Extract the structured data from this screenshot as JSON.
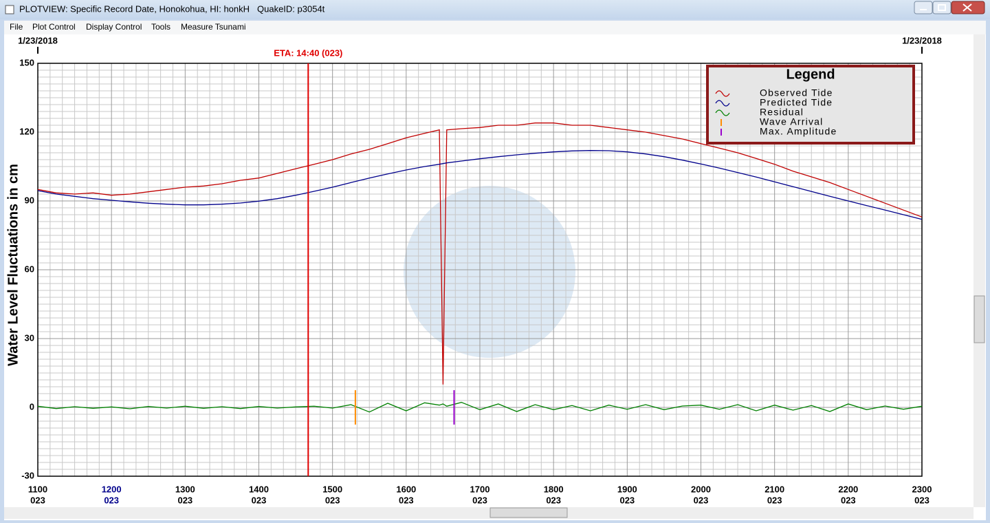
{
  "window": {
    "title": "PLOTVIEW: Specific Record Date, Honokohua, HI: honkH",
    "quake_id": "QuakeID: p3054t"
  },
  "menu": [
    "File",
    "Plot Control",
    "Display Control",
    "Tools",
    "Measure Tsunami"
  ],
  "chart_data": {
    "type": "line",
    "y_label": "Water Level Fluctuations in cm",
    "date_labels": [
      "1/23/2018",
      "1/23/2018"
    ],
    "xlim": [
      11,
      23
    ],
    "xticks": [
      {
        "value": 11,
        "label": "1100",
        "day": "023"
      },
      {
        "value": 12,
        "label": "1200",
        "day": "023",
        "color": "#00008b"
      },
      {
        "value": 13,
        "label": "1300",
        "day": "023"
      },
      {
        "value": 14,
        "label": "1400",
        "day": "023"
      },
      {
        "value": 15,
        "label": "1500",
        "day": "023"
      },
      {
        "value": 16,
        "label": "1600",
        "day": "023"
      },
      {
        "value": 17,
        "label": "1700",
        "day": "023"
      },
      {
        "value": 18,
        "label": "1800",
        "day": "023"
      },
      {
        "value": 19,
        "label": "1900",
        "day": "023"
      },
      {
        "value": 20,
        "label": "2000",
        "day": "023"
      },
      {
        "value": 21,
        "label": "2100",
        "day": "023"
      },
      {
        "value": 22,
        "label": "2200",
        "day": "023"
      },
      {
        "value": 23,
        "label": "2300",
        "day": "023"
      }
    ],
    "ylim": [
      -30,
      150
    ],
    "yticks": [
      -30,
      0,
      30,
      60,
      90,
      120,
      150
    ],
    "grid": true,
    "x": [
      11,
      11.25,
      11.5,
      11.75,
      12,
      12.25,
      12.5,
      12.75,
      13,
      13.25,
      13.5,
      13.75,
      14,
      14.25,
      14.5,
      14.75,
      15,
      15.25,
      15.5,
      15.75,
      16,
      16.25,
      16.45,
      16.5,
      16.55,
      16.75,
      17,
      17.25,
      17.5,
      17.75,
      18,
      18.25,
      18.5,
      18.75,
      19,
      19.25,
      19.5,
      19.75,
      20,
      20.25,
      20.5,
      20.75,
      21,
      21.25,
      21.5,
      21.75,
      22,
      22.25,
      22.5,
      22.75,
      23
    ],
    "series": [
      {
        "name": "Observed Tide",
        "color": "#c00000",
        "values": [
          95,
          93.5,
          93,
          93.5,
          92.5,
          93,
          94,
          95,
          96,
          96.5,
          97.5,
          99,
          100,
          102,
          104,
          106,
          108,
          110.5,
          112.5,
          115,
          117.5,
          119.5,
          121,
          10,
          121,
          121.5,
          122,
          123,
          123,
          124,
          124,
          123,
          123,
          122,
          121,
          120,
          118.5,
          117,
          115,
          113,
          111,
          108.5,
          106,
          103,
          100.5,
          98,
          95,
          92,
          89,
          86,
          83
        ]
      },
      {
        "name": "Predicted Tide",
        "color": "#00008b",
        "values": [
          94.5,
          93,
          92,
          91,
          90.3,
          89.6,
          89,
          88.6,
          88.3,
          88.3,
          88.6,
          89.1,
          89.9,
          91,
          92.5,
          94.2,
          96,
          98,
          100,
          101.8,
          103.5,
          105,
          106,
          106.3,
          106.6,
          107.4,
          108.4,
          109.3,
          110.1,
          110.8,
          111.4,
          111.8,
          112,
          111.9,
          111.4,
          110.5,
          109.3,
          107.8,
          106.1,
          104.3,
          102.4,
          100.4,
          98.3,
          96.2,
          94.1,
          92,
          90,
          88,
          86,
          84,
          82
        ]
      },
      {
        "name": "Residual",
        "color": "#008000",
        "values": [
          0.5,
          -0.5,
          0.3,
          -0.4,
          0.2,
          -0.6,
          0.4,
          -0.3,
          0.5,
          -0.4,
          0.3,
          -0.5,
          0.4,
          -0.3,
          0.2,
          0.5,
          -0.3,
          1.2,
          -2,
          1.8,
          -1.5,
          2,
          1,
          1.5,
          0.5,
          2.2,
          -1,
          1.5,
          -1.8,
          1.2,
          -1,
          0.8,
          -1.5,
          1,
          -0.8,
          1.2,
          -1,
          0.6,
          1,
          -0.8,
          1.2,
          -1.5,
          1,
          -1.2,
          0.8,
          -1.8,
          1.5,
          -1,
          0.6,
          -0.8,
          0.5
        ]
      }
    ],
    "markers": [
      {
        "label": "ETA: 14:40 (023)",
        "x": 14.67,
        "color": "#e00000"
      },
      {
        "name": "Wave Arrival",
        "x": 15.31,
        "color": "#ff8c00"
      },
      {
        "name": "Max. Amplitude",
        "x": 16.65,
        "color": "#9900cc"
      }
    ],
    "legend": {
      "title": "Legend",
      "position": "top-right"
    }
  }
}
